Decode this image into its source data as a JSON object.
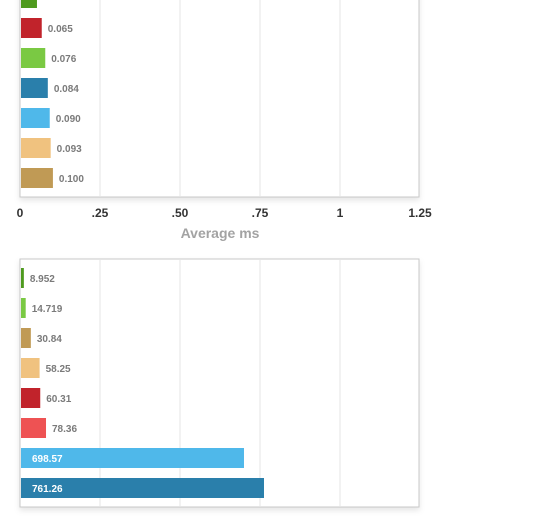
{
  "chart_data": [
    {
      "type": "bar",
      "orientation": "horizontal",
      "title": "",
      "xlabel": "Average ms",
      "ylabel": "",
      "xlim": [
        0,
        1.25
      ],
      "x_ticks": [
        "0",
        ".25",
        ".50",
        ".75",
        "1",
        "1.25"
      ],
      "grid": true,
      "legend": "none",
      "values": [
        0.05,
        0.065,
        0.076,
        0.084,
        0.09,
        0.093,
        0.1
      ],
      "labels": [
        "",
        "0.065",
        "0.076",
        "0.084",
        "0.090",
        "0.093",
        "0.100"
      ],
      "colors": [
        "#4e9a1e",
        "#c1232b",
        "#7ac943",
        "#2a7fab",
        "#4fb8ea",
        "#f0c27f",
        "#c09a55"
      ]
    },
    {
      "type": "bar",
      "orientation": "horizontal",
      "title": "",
      "xlabel": "",
      "ylabel": "",
      "xlim": [
        0,
        1250
      ],
      "grid": true,
      "legend": "none",
      "values": [
        8.952,
        14.719,
        30.84,
        58.25,
        60.31,
        78.36,
        698.57,
        761.26
      ],
      "labels": [
        "8.952",
        "14.719",
        "30.84",
        "58.25",
        "60.31",
        "78.36",
        "698.57",
        "761.26"
      ],
      "colors": [
        "#4e9a1e",
        "#7ac943",
        "#c09a55",
        "#f0c27f",
        "#c1232b",
        "#ee5253",
        "#4fb8ea",
        "#2a7fab"
      ]
    }
  ]
}
